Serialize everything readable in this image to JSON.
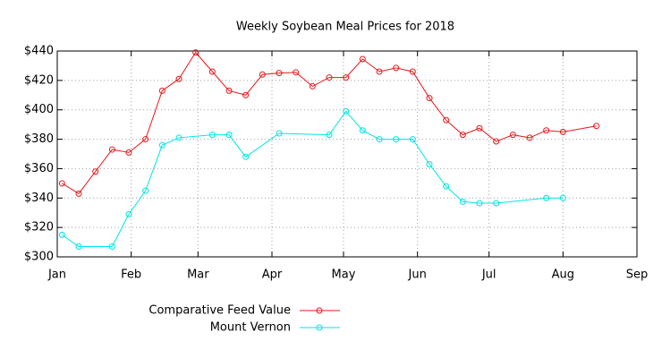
{
  "chart_data": {
    "type": "line",
    "title": "Weekly Soybean Meal Prices for 2018",
    "xlim": [
      0,
      243
    ],
    "ylim": [
      300,
      440
    ],
    "grid": true,
    "xticks": [
      {
        "value": 0,
        "label": "Jan"
      },
      {
        "value": 31,
        "label": "Feb"
      },
      {
        "value": 59,
        "label": "Mar"
      },
      {
        "value": 90,
        "label": "Apr"
      },
      {
        "value": 120,
        "label": "May"
      },
      {
        "value": 151,
        "label": "Jun"
      },
      {
        "value": 181,
        "label": "Jul"
      },
      {
        "value": 212,
        "label": "Aug"
      },
      {
        "value": 243,
        "label": "Sep"
      }
    ],
    "yticks": [
      {
        "value": 300,
        "label": "$300"
      },
      {
        "value": 320,
        "label": "$320"
      },
      {
        "value": 340,
        "label": "$340"
      },
      {
        "value": 360,
        "label": "$360"
      },
      {
        "value": 380,
        "label": "$380"
      },
      {
        "value": 400,
        "label": "$400"
      },
      {
        "value": 420,
        "label": "$420"
      },
      {
        "value": 440,
        "label": "$440"
      }
    ],
    "series": [
      {
        "name": "Comparative Feed Value",
        "color": "#e41a1c",
        "x": [
          2,
          9,
          16,
          23,
          30,
          37,
          44,
          51,
          58,
          65,
          72,
          79,
          86,
          93,
          100,
          107,
          114,
          121,
          128,
          135,
          142,
          149,
          156,
          163,
          170,
          177,
          184,
          191,
          198,
          205,
          212,
          226
        ],
        "values": [
          350,
          343,
          358,
          373,
          371,
          380,
          413,
          421,
          439,
          426,
          413,
          410,
          424,
          425,
          425.5,
          416,
          422,
          422,
          434.5,
          426,
          428.5,
          426,
          408,
          393,
          383,
          387.5,
          378.5,
          383,
          381,
          386,
          385,
          389
        ]
      },
      {
        "name": "Mount Vernon",
        "color": "#00e5e5",
        "x": [
          2,
          9,
          23,
          30,
          37,
          44,
          51,
          65,
          72,
          79,
          93,
          114,
          121,
          128,
          135,
          142,
          149,
          156,
          163,
          170,
          177,
          184,
          205,
          212
        ],
        "values": [
          315,
          307,
          307,
          329,
          345,
          376,
          381,
          383,
          383,
          368,
          384,
          383,
          399,
          386,
          380,
          380,
          380,
          363,
          348,
          337.5,
          336.5,
          336.5,
          340,
          340
        ]
      }
    ]
  }
}
